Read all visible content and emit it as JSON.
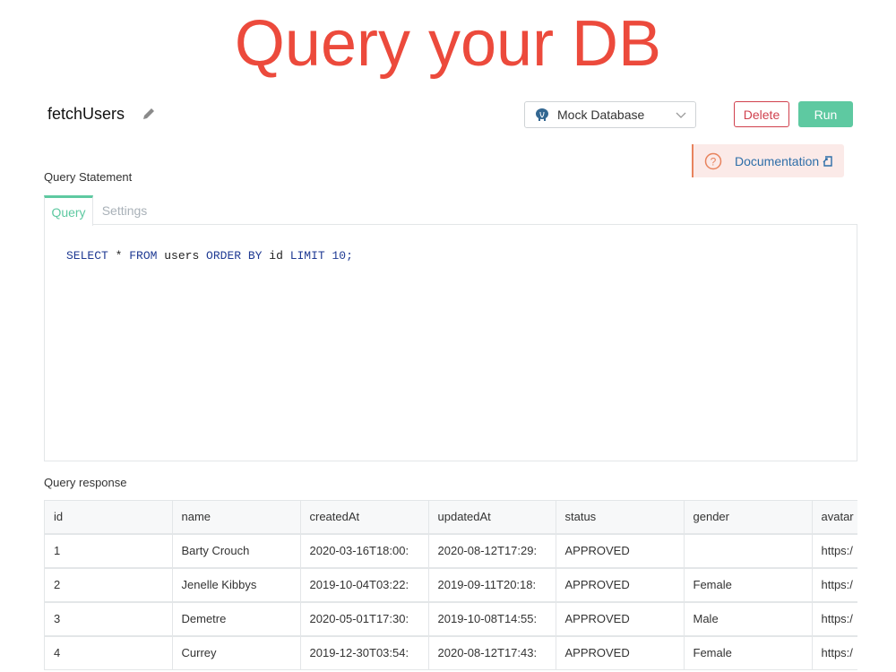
{
  "page_title": "Query your DB",
  "query_name": "fetchUsers",
  "datasource": {
    "selected": "Mock Database",
    "icon": "postgres-elephant-icon"
  },
  "buttons": {
    "delete": "Delete",
    "run": "Run"
  },
  "documentation": {
    "label": "Documentation"
  },
  "colors": {
    "title": "#ec4a3c",
    "accent": "#5ec9a1",
    "danger": "#d0404d",
    "link": "#2d6ea8"
  },
  "statement_label": "Query Statement",
  "tabs": [
    {
      "label": "Query",
      "active": true
    },
    {
      "label": "Settings",
      "active": false
    }
  ],
  "editor": {
    "tokens": [
      {
        "t": "SELECT",
        "kw": true
      },
      {
        "t": " * ",
        "kw": false
      },
      {
        "t": "FROM",
        "kw": true
      },
      {
        "t": " users ",
        "kw": false
      },
      {
        "t": "ORDER BY",
        "kw": true
      },
      {
        "t": " id ",
        "kw": false
      },
      {
        "t": "LIMIT 10;",
        "kw": true
      }
    ]
  },
  "response_label": "Query response",
  "table": {
    "columns": [
      "id",
      "name",
      "createdAt",
      "updatedAt",
      "status",
      "gender",
      "avatar"
    ],
    "rows": [
      [
        "1",
        "Barty Crouch",
        "2020-03-16T18:00:",
        "2020-08-12T17:29:",
        "APPROVED",
        "",
        "https:/"
      ],
      [
        "2",
        "Jenelle Kibbys",
        "2019-10-04T03:22:",
        "2019-09-11T20:18:",
        "APPROVED",
        "Female",
        "https:/"
      ],
      [
        "3",
        "Demetre",
        "2020-05-01T17:30:",
        "2019-10-08T14:55:",
        "APPROVED",
        "Male",
        "https:/"
      ],
      [
        "4",
        "Currey",
        "2019-12-30T03:54:",
        "2020-08-12T17:43:",
        "APPROVED",
        "Female",
        "https:/"
      ]
    ]
  }
}
